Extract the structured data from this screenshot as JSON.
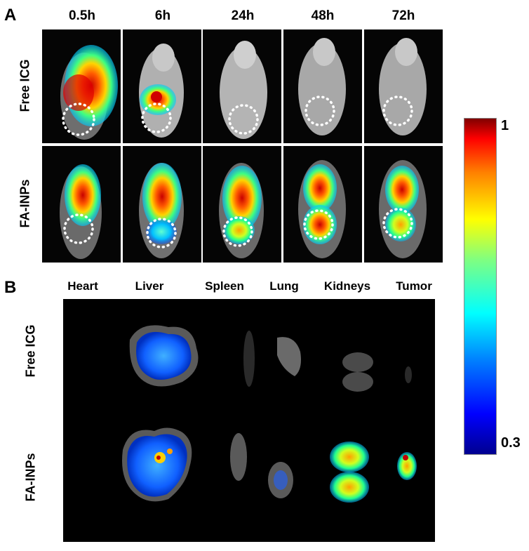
{
  "panel_a": {
    "letter": "A",
    "timepoints": [
      "0.5h",
      "6h",
      "24h",
      "48h",
      "72h"
    ],
    "rows": [
      "Free ICG",
      "FA-INPs"
    ]
  },
  "panel_b": {
    "letter": "B",
    "organs": [
      "Heart",
      "Liver",
      "Spleen",
      "Lung",
      "Kidneys",
      "Tumor"
    ],
    "rows": [
      "Free ICG",
      "FA-INPs"
    ]
  },
  "colorbar": {
    "max_label": "1",
    "min_label": "0.3",
    "colors": [
      "#00008f",
      "#0000ff",
      "#0080ff",
      "#00ffff",
      "#80ff80",
      "#ffff00",
      "#ff8000",
      "#ff0000",
      "#800000"
    ]
  }
}
